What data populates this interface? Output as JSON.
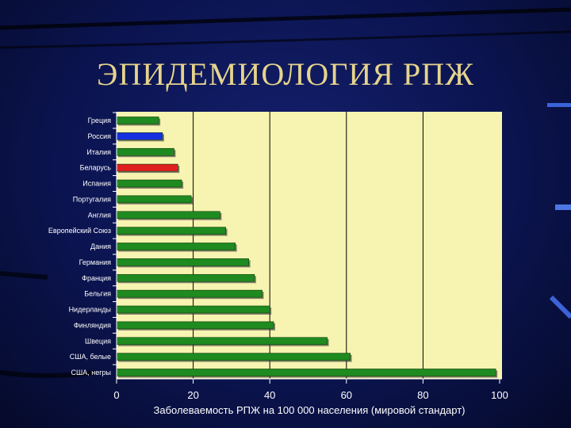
{
  "slide": {
    "title": "ЭПИДЕМИОЛОГИЯ РПЖ"
  },
  "colors": {
    "background": "#0b1450",
    "plot_area": "#f6f4b0",
    "bar_default": "#1f8a1f",
    "bar_russia": "#1530e0",
    "bar_belarus": "#e02020",
    "title": "#e6d48c"
  },
  "chart_data": {
    "type": "bar",
    "orientation": "horizontal",
    "categories": [
      "Греция",
      "Россия",
      "Италия",
      "Беларусь",
      "Испания",
      "Португалия",
      "Англия",
      "Европейский Союз",
      "Дания",
      "Германия",
      "Франция",
      "Бельгия",
      "Нидерланды",
      "Финляндия",
      "Швеция",
      "США, белые",
      "США, негры"
    ],
    "values": [
      11,
      12,
      15,
      16,
      17,
      19.5,
      27,
      28.5,
      31,
      34.5,
      36,
      38,
      40,
      41,
      55,
      61,
      99
    ],
    "bar_colors": [
      "#1f8a1f",
      "#1530e0",
      "#1f8a1f",
      "#e02020",
      "#1f8a1f",
      "#1f8a1f",
      "#1f8a1f",
      "#1f8a1f",
      "#1f8a1f",
      "#1f8a1f",
      "#1f8a1f",
      "#1f8a1f",
      "#1f8a1f",
      "#1f8a1f",
      "#1f8a1f",
      "#1f8a1f",
      "#1f8a1f"
    ],
    "xlabel": "Заболеваемость РПЖ на 100 000 населения (мировой стандарт)",
    "ylabel": "",
    "xlim": [
      0,
      100
    ],
    "xticks": [
      0,
      20,
      40,
      60,
      80,
      100
    ],
    "grid": "vertical"
  }
}
